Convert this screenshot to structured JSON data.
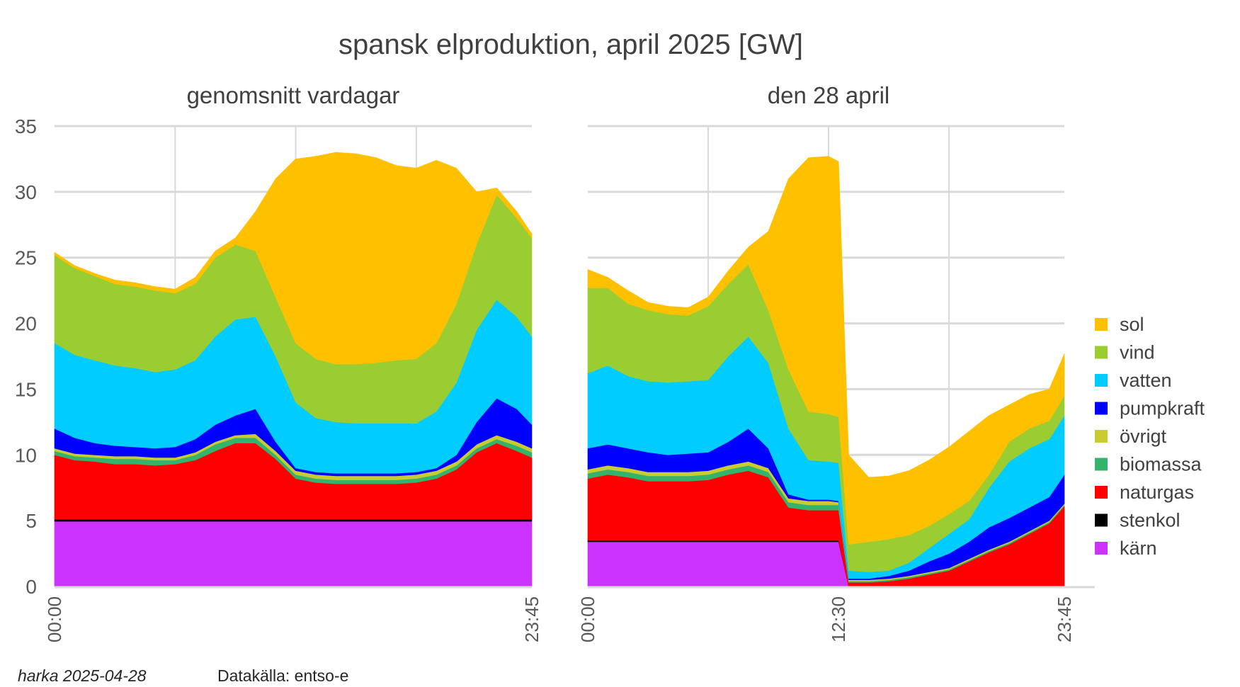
{
  "chart_data": {
    "title": "spansk elproduktion, april 2025  [GW]",
    "type": "area",
    "stacked": true,
    "ylim": [
      0,
      35
    ],
    "yticks": [
      0,
      5,
      10,
      15,
      20,
      25,
      30,
      35
    ],
    "grid": true,
    "legend_position": "right",
    "series_order": [
      "kärn",
      "stenkol",
      "naturgas",
      "biomassa",
      "övrigt",
      "pumpkraft",
      "vatten",
      "vind",
      "sol"
    ],
    "legend": [
      "sol",
      "vind",
      "vatten",
      "pumpkraft",
      "övrigt",
      "biomassa",
      "naturgas",
      "stenkol",
      "kärn"
    ],
    "colors": {
      "sol": "#FFC000",
      "vind": "#9ACD32",
      "vatten": "#00CCFF",
      "pumpkraft": "#0000FF",
      "övrigt": "#C8CC30",
      "biomassa": "#33B36B",
      "naturgas": "#FF0000",
      "stenkol": "#000000",
      "kärn": "#CC33FF"
    },
    "panels": [
      {
        "subtitle": "genomsnitt vardagar",
        "xunit": "hour of day",
        "xticks": [
          {
            "value": 0,
            "label": "00:00"
          },
          {
            "value": 23.75,
            "label": "23:45"
          }
        ],
        "x": [
          0,
          1,
          2,
          3,
          4,
          5,
          6,
          7,
          8,
          9,
          10,
          11,
          12,
          13,
          14,
          15,
          16,
          17,
          18,
          19,
          20,
          21,
          22,
          23,
          23.75
        ],
        "series": {
          "kärn": [
            4.95,
            4.95,
            4.95,
            4.95,
            4.95,
            4.95,
            4.95,
            4.95,
            4.95,
            4.95,
            4.95,
            4.95,
            4.95,
            4.95,
            4.95,
            4.95,
            4.95,
            4.95,
            4.95,
            4.95,
            4.95,
            4.95,
            4.95,
            4.95,
            4.95
          ],
          "stenkol": [
            0.15,
            0.15,
            0.15,
            0.15,
            0.15,
            0.15,
            0.15,
            0.15,
            0.15,
            0.15,
            0.15,
            0.15,
            0.15,
            0.15,
            0.15,
            0.15,
            0.15,
            0.15,
            0.15,
            0.15,
            0.15,
            0.15,
            0.15,
            0.15,
            0.15
          ],
          "naturgas": [
            4.9,
            4.5,
            4.4,
            4.2,
            4.2,
            4.1,
            4.2,
            4.5,
            5.2,
            5.8,
            5.8,
            4.6,
            3.1,
            2.8,
            2.7,
            2.7,
            2.7,
            2.7,
            2.8,
            3.1,
            3.8,
            5.1,
            5.8,
            5.2,
            4.7
          ],
          "biomassa": [
            0.3,
            0.3,
            0.3,
            0.4,
            0.4,
            0.4,
            0.3,
            0.4,
            0.5,
            0.4,
            0.4,
            0.3,
            0.3,
            0.3,
            0.3,
            0.3,
            0.3,
            0.3,
            0.3,
            0.3,
            0.3,
            0.3,
            0.3,
            0.4,
            0.4
          ],
          "övrigt": [
            0.2,
            0.2,
            0.2,
            0.2,
            0.2,
            0.2,
            0.2,
            0.2,
            0.2,
            0.2,
            0.3,
            0.3,
            0.3,
            0.3,
            0.3,
            0.3,
            0.3,
            0.3,
            0.3,
            0.3,
            0.3,
            0.3,
            0.3,
            0.3,
            0.3
          ],
          "pumpkraft": [
            1.5,
            1.2,
            0.9,
            0.8,
            0.7,
            0.7,
            0.8,
            1.0,
            1.3,
            1.5,
            1.9,
            0.7,
            0.2,
            0.2,
            0.2,
            0.2,
            0.2,
            0.2,
            0.2,
            0.2,
            0.5,
            1.7,
            2.8,
            2.5,
            1.8
          ],
          "vatten": [
            6.5,
            6.3,
            6.3,
            6.1,
            6.0,
            5.8,
            5.9,
            6.0,
            6.7,
            7.3,
            7.0,
            6.5,
            5.0,
            4.1,
            3.9,
            3.8,
            3.8,
            3.8,
            3.7,
            4.3,
            5.5,
            7.0,
            7.5,
            7.0,
            6.7
          ],
          "vind": [
            6.7,
            6.6,
            6.4,
            6.2,
            6.2,
            6.2,
            5.8,
            5.8,
            6.0,
            5.7,
            5.0,
            4.5,
            4.5,
            4.5,
            4.4,
            4.5,
            4.6,
            4.8,
            4.9,
            5.2,
            6.0,
            6.5,
            8.0,
            7.5,
            7.5
          ],
          "sol": [
            0.2,
            0.2,
            0.2,
            0.3,
            0.3,
            0.3,
            0.3,
            0.5,
            0.5,
            0.5,
            3.0,
            9.0,
            14.0,
            15.4,
            16.1,
            16.0,
            15.6,
            14.8,
            14.5,
            13.9,
            10.3,
            4.0,
            0.5,
            0.5,
            0.3
          ]
        }
      },
      {
        "subtitle": "den 28 april",
        "xunit": "hour of day",
        "xticks": [
          {
            "value": 0,
            "label": "00:00"
          },
          {
            "value": 12.5,
            "label": "12:30"
          },
          {
            "value": 23.75,
            "label": "23:45"
          }
        ],
        "x": [
          0,
          1,
          2,
          3,
          4,
          5,
          6,
          7,
          8,
          9,
          10,
          11,
          12,
          12.5,
          13,
          14,
          15,
          16,
          17,
          18,
          19,
          20,
          21,
          22,
          23,
          23.75
        ],
        "series": {
          "kärn": [
            3.4,
            3.4,
            3.4,
            3.4,
            3.4,
            3.4,
            3.4,
            3.4,
            3.4,
            3.4,
            3.4,
            3.4,
            3.4,
            3.4,
            0,
            0,
            0,
            0,
            0,
            0,
            0,
            0,
            0,
            0,
            0,
            0
          ],
          "stenkol": [
            0.1,
            0.1,
            0.1,
            0.1,
            0.1,
            0.1,
            0.1,
            0.1,
            0.1,
            0.1,
            0.1,
            0.1,
            0.1,
            0.1,
            0,
            0,
            0,
            0,
            0,
            0,
            0,
            0,
            0,
            0,
            0,
            0
          ],
          "naturgas": [
            4.7,
            5.0,
            4.8,
            4.5,
            4.5,
            4.5,
            4.6,
            5.0,
            5.3,
            4.8,
            2.5,
            2.3,
            2.3,
            2.3,
            0.3,
            0.3,
            0.4,
            0.6,
            0.9,
            1.2,
            1.9,
            2.6,
            3.2,
            4.0,
            4.8,
            6.1
          ],
          "biomassa": [
            0.4,
            0.4,
            0.4,
            0.4,
            0.4,
            0.4,
            0.4,
            0.4,
            0.4,
            0.4,
            0.4,
            0.4,
            0.4,
            0.4,
            0.1,
            0.1,
            0.1,
            0.1,
            0.1,
            0.1,
            0.1,
            0.1,
            0.1,
            0.1,
            0.1,
            0.1
          ],
          "övrigt": [
            0.3,
            0.3,
            0.3,
            0.3,
            0.3,
            0.3,
            0.3,
            0.3,
            0.3,
            0.3,
            0.3,
            0.3,
            0.3,
            0.2,
            0.1,
            0.1,
            0.1,
            0.1,
            0.1,
            0.1,
            0.1,
            0.1,
            0.1,
            0.1,
            0.1,
            0.1
          ],
          "pumpkraft": [
            1.6,
            1.6,
            1.5,
            1.5,
            1.3,
            1.4,
            1.4,
            1.8,
            2.5,
            1.5,
            0.3,
            0.1,
            0.1,
            0.1,
            0.1,
            0.1,
            0.2,
            0.4,
            0.8,
            1.1,
            1.3,
            1.7,
            1.8,
            1.8,
            1.8,
            2.2
          ],
          "vatten": [
            5.7,
            6.0,
            5.5,
            5.4,
            5.5,
            5.5,
            5.5,
            6.5,
            7.0,
            6.5,
            5.0,
            3.0,
            2.9,
            2.9,
            0.6,
            0.5,
            0.4,
            0.6,
            1.0,
            1.5,
            1.7,
            3.0,
            4.3,
            4.5,
            4.4,
            4.5
          ],
          "vind": [
            6.5,
            5.9,
            5.5,
            5.4,
            5.2,
            5.0,
            5.6,
            5.5,
            5.5,
            4.0,
            4.5,
            3.7,
            3.6,
            3.5,
            2.0,
            2.3,
            2.4,
            2.1,
            1.7,
            1.5,
            1.4,
            1.0,
            1.5,
            1.5,
            1.4,
            1.5
          ],
          "sol": [
            1.4,
            0.8,
            1.0,
            0.6,
            0.6,
            0.6,
            0.7,
            1.0,
            1.3,
            6.0,
            14.5,
            19.3,
            19.6,
            19.4,
            6.8,
            4.9,
            4.8,
            4.9,
            5.0,
            5.1,
            5.3,
            4.5,
            2.8,
            2.6,
            2.4,
            3.2
          ]
        }
      }
    ]
  },
  "footer": {
    "author": "harka 2025-04-28",
    "source": "Datakälla: entso-e"
  }
}
